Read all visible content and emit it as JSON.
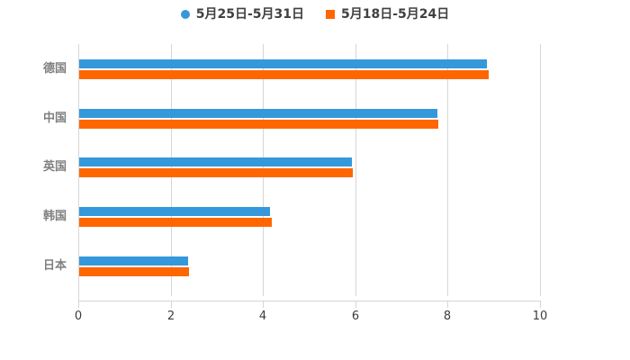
{
  "legend": {
    "series1_label": "5月25日-5月31日",
    "series2_label": "5月18日-5月24日",
    "series1_marker": "circle",
    "series2_marker": "square"
  },
  "colors": {
    "series1": "#3498db",
    "series2": "#ff6600",
    "grid": "#d6d6d6",
    "axis": "#d6d6d6",
    "tick_text": "#3c3c3c",
    "category_text": "#7f7f7f",
    "legend_text": "#404040",
    "background": "#ffffff"
  },
  "chart_data": {
    "type": "bar",
    "orientation": "horizontal",
    "title": "",
    "xlabel": "",
    "ylabel": "",
    "categories": [
      "德国",
      "中国",
      "英国",
      "韩国",
      "日本"
    ],
    "series": [
      {
        "name": "5月25日-5月31日",
        "color": "#3498db",
        "marker": "circle",
        "values": [
          8.84,
          7.75,
          5.9,
          4.14,
          2.36
        ]
      },
      {
        "name": "5月18日-5月24日",
        "color": "#ff6600",
        "marker": "square",
        "values": [
          8.87,
          7.77,
          5.92,
          4.17,
          2.38
        ]
      }
    ],
    "x_ticks": [
      0,
      2,
      4,
      6,
      8,
      10
    ],
    "xlim": [
      0,
      10
    ],
    "grid": true,
    "legend_position": "top-center"
  }
}
